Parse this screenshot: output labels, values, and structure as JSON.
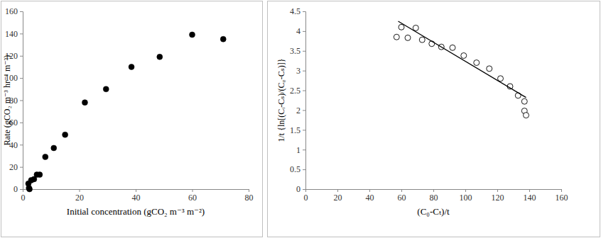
{
  "chart_data": [
    {
      "type": "scatter",
      "x_label": "Initial concentration (gCO₂ m⁻³ m⁻²)",
      "y_label": "Rate (gCO₂ m⁻³ hr⁻¹ m⁻²)",
      "xlim": [
        0,
        80
      ],
      "xticks": [
        0,
        20,
        40,
        60,
        80
      ],
      "ylim": [
        0,
        160
      ],
      "yticks": [
        0,
        20,
        40,
        60,
        80,
        100,
        120,
        140,
        160
      ],
      "series": [
        {
          "type": "scatter",
          "marker": "filled-circle",
          "color": "#000000",
          "x": [
            2,
            2.2,
            2.4,
            3,
            4,
            5,
            6,
            8,
            11,
            15,
            22,
            29.5,
            38.5,
            48.5,
            60,
            71
          ],
          "values": [
            5,
            1,
            0,
            8,
            9,
            13,
            13,
            29,
            37,
            49,
            78,
            90,
            110,
            119,
            139,
            135
          ]
        }
      ]
    },
    {
      "type": "scatter",
      "x_label": "(C₀-Cₜ)/t",
      "y_label": "1/t {ln[(Cᵢ-Cₛ)/(C₀-Cₛ)]}",
      "xlim": [
        0,
        160
      ],
      "xticks": [
        0,
        20,
        40,
        60,
        80,
        100,
        120,
        140,
        160
      ],
      "ylim": [
        0,
        4.5
      ],
      "yticks": [
        0,
        0.5,
        1,
        1.5,
        2,
        2.5,
        3,
        3.5,
        4,
        4.5
      ],
      "series": [
        {
          "type": "scatter",
          "marker": "open-circle",
          "color": "#000000",
          "x": [
            57,
            60,
            64,
            69,
            73,
            79,
            85,
            92,
            99,
            107,
            115,
            122,
            128,
            133,
            137,
            137,
            138
          ],
          "values": [
            3.85,
            4.1,
            3.83,
            4.08,
            3.78,
            3.68,
            3.6,
            3.58,
            3.38,
            3.2,
            3.05,
            2.8,
            2.6,
            2.37,
            2.22,
            1.98,
            1.87
          ]
        },
        {
          "type": "line",
          "line_style": "solid",
          "color": "#000000",
          "x": [
            58,
            138
          ],
          "values": [
            4.25,
            2.32
          ]
        }
      ]
    }
  ]
}
